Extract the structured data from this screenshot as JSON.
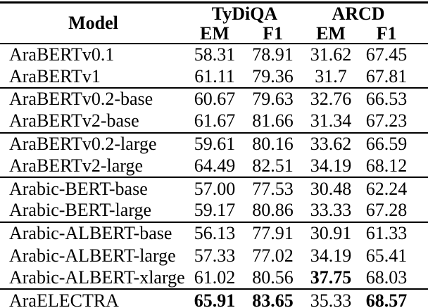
{
  "page": {
    "background": "#ffffff",
    "text_color": "#000000",
    "rule_color": "#000000"
  },
  "table": {
    "header": {
      "model": "Model",
      "groups": [
        {
          "label": "TyDiQA",
          "subs": [
            "EM",
            "F1"
          ]
        },
        {
          "label": "ARCD",
          "subs": [
            "EM",
            "F1"
          ]
        }
      ]
    },
    "body_groups": [
      {
        "rows": [
          {
            "model": "AraBERTv0.1",
            "values": [
              "58.31",
              "78.91",
              "31.62",
              "67.45"
            ],
            "bold": [
              false,
              false,
              false,
              false
            ]
          },
          {
            "model": "AraBERTv1",
            "values": [
              "61.11",
              "79.36",
              "31.7",
              "67.81"
            ],
            "bold": [
              false,
              false,
              false,
              false
            ]
          }
        ]
      },
      {
        "rows": [
          {
            "model": "AraBERTv0.2-base",
            "values": [
              "60.67",
              "79.63",
              "32.76",
              "66.53"
            ],
            "bold": [
              false,
              false,
              false,
              false
            ]
          },
          {
            "model": "AraBERTv2-base",
            "values": [
              "61.67",
              "81.66",
              "31.34",
              "67.23"
            ],
            "bold": [
              false,
              false,
              false,
              false
            ]
          }
        ]
      },
      {
        "rows": [
          {
            "model": "AraBERTv0.2-large",
            "values": [
              "59.61",
              "80.16",
              "33.62",
              "66.59"
            ],
            "bold": [
              false,
              false,
              false,
              false
            ]
          },
          {
            "model": "AraBERTv2-large",
            "values": [
              "64.49",
              "82.51",
              "34.19",
              "68.12"
            ],
            "bold": [
              false,
              false,
              false,
              false
            ]
          }
        ]
      },
      {
        "rows": [
          {
            "model": "Arabic-BERT-base",
            "values": [
              "57.00",
              "77.53",
              "30.48",
              "62.24"
            ],
            "bold": [
              false,
              false,
              false,
              false
            ]
          },
          {
            "model": "Arabic-BERT-large",
            "values": [
              "59.17",
              "80.86",
              "33.33",
              "67.28"
            ],
            "bold": [
              false,
              false,
              false,
              false
            ]
          }
        ]
      },
      {
        "rows": [
          {
            "model": "Arabic-ALBERT-base",
            "values": [
              "56.13",
              "77.91",
              "30.91",
              "61.33"
            ],
            "bold": [
              false,
              false,
              false,
              false
            ]
          },
          {
            "model": "Arabic-ALBERT-large",
            "values": [
              "57.33",
              "77.02",
              "34.19",
              "65.41"
            ],
            "bold": [
              false,
              false,
              false,
              false
            ]
          },
          {
            "model": "Arabic-ALBERT-xlarge",
            "values": [
              "61.02",
              "80.56",
              "37.75",
              "68.03"
            ],
            "bold": [
              false,
              false,
              true,
              false
            ]
          }
        ]
      },
      {
        "rows": [
          {
            "model": "AraELECTRA",
            "values": [
              "65.91",
              "83.65",
              "35.33",
              "68.57"
            ],
            "bold": [
              true,
              true,
              false,
              true
            ]
          }
        ]
      }
    ]
  }
}
